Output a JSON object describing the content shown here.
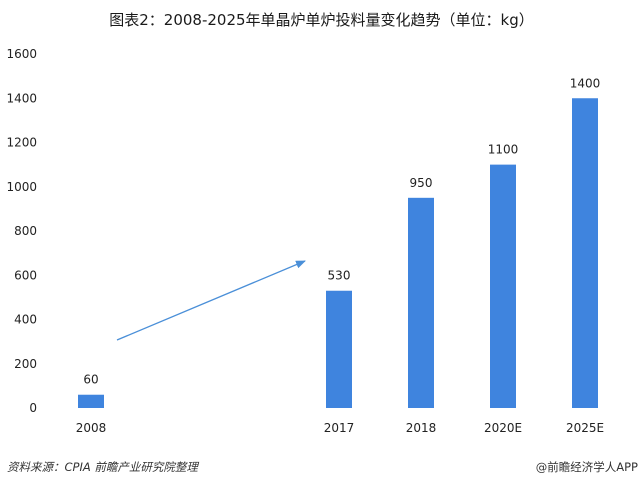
{
  "title": "图表2：2008-2025年单晶炉单炉投料量变化趋势（单位：kg）",
  "source": "资料来源：CPIA 前瞻产业研究院整理",
  "brand": "@前瞻经济学人APP",
  "colors": {
    "bar": "#3f84de",
    "arrow": "#4a8fd8"
  },
  "chart_data": {
    "type": "bar",
    "title": "图表2：2008-2025年单晶炉单炉投料量变化趋势（单位：kg）",
    "categories": [
      "2008",
      "2017",
      "2018",
      "2020E",
      "2025E"
    ],
    "values": [
      60,
      530,
      950,
      1100,
      1400
    ],
    "data_labels": [
      "60",
      "530",
      "950",
      "1100",
      "1400"
    ],
    "yticks": [
      "0",
      "200",
      "400",
      "600",
      "800",
      "1000",
      "1200",
      "1400",
      "1600"
    ],
    "ylim": [
      0,
      1600
    ],
    "xlabel": "",
    "ylabel": "",
    "grid": false,
    "legend": "none",
    "annotations": [
      "upward trend arrow between 2008 and 2017"
    ]
  }
}
